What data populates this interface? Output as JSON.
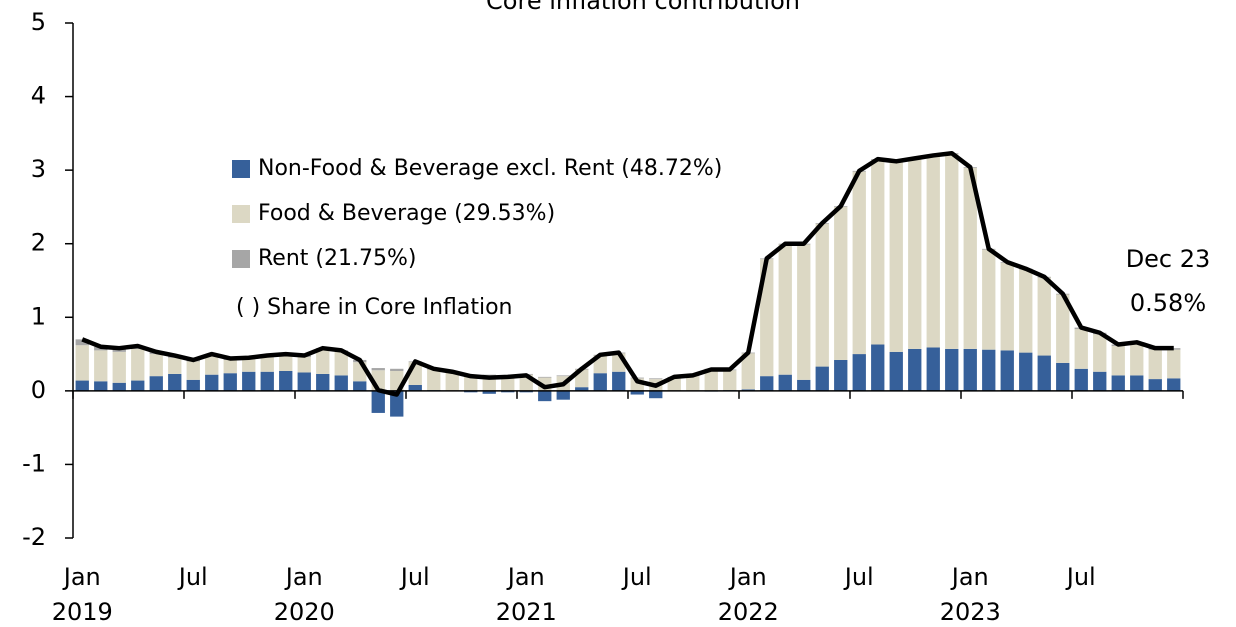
{
  "chart_data": {
    "type": "bar",
    "title": "Core inflation contribution",
    "categories": [
      "Jan",
      null,
      null,
      null,
      null,
      null,
      "Jul",
      null,
      null,
      null,
      null,
      null,
      "Jan",
      null,
      null,
      null,
      null,
      null,
      "Jul",
      null,
      null,
      null,
      null,
      null,
      "Jan",
      null,
      null,
      null,
      null,
      null,
      "Jul",
      null,
      null,
      null,
      null,
      null,
      "Jan",
      null,
      null,
      null,
      null,
      null,
      "Jul",
      null,
      null,
      null,
      null,
      null,
      "Jan",
      null,
      null,
      null,
      null,
      null,
      "Jul",
      null,
      null,
      null,
      null,
      null
    ],
    "year_labels": [
      "2019",
      "2020",
      "2021",
      "2022",
      "2023"
    ],
    "series": [
      {
        "name": "Non-Food & Beverage excl. Rent (48.72%)",
        "color": "#36609a",
        "values": [
          0.14,
          0.13,
          0.11,
          0.14,
          0.2,
          0.23,
          0.15,
          0.22,
          0.24,
          0.26,
          0.26,
          0.27,
          0.25,
          0.23,
          0.21,
          0.13,
          -0.3,
          -0.35,
          0.08,
          0.01,
          0.0,
          -0.02,
          -0.04,
          -0.02,
          -0.02,
          -0.14,
          -0.12,
          0.05,
          0.24,
          0.26,
          -0.05,
          -0.1,
          0.0,
          0.0,
          -0.01,
          0.01,
          0.02,
          0.2,
          0.22,
          0.15,
          0.33,
          0.42,
          0.5,
          0.63,
          0.53,
          0.57,
          0.59,
          0.57,
          0.57,
          0.56,
          0.55,
          0.52,
          0.48,
          0.38,
          0.3,
          0.26,
          0.21,
          0.21,
          0.16,
          0.17
        ]
      },
      {
        "name": "Food & Beverage (29.53%)",
        "color": "#dcd8c4",
        "values": [
          0.48,
          0.42,
          0.42,
          0.43,
          0.3,
          0.22,
          0.25,
          0.26,
          0.18,
          0.17,
          0.2,
          0.21,
          0.21,
          0.33,
          0.32,
          0.26,
          0.28,
          0.27,
          0.31,
          0.28,
          0.25,
          0.21,
          0.21,
          0.2,
          0.22,
          0.18,
          0.2,
          0.24,
          0.24,
          0.25,
          0.17,
          0.16,
          0.18,
          0.2,
          0.29,
          0.27,
          0.49,
          1.59,
          1.77,
          1.84,
          1.94,
          2.08,
          2.48,
          2.51,
          2.58,
          2.58,
          2.6,
          2.65,
          2.46,
          1.36,
          1.19,
          1.13,
          1.06,
          0.93,
          0.54,
          0.51,
          0.4,
          0.43,
          0.4,
          0.39
        ]
      },
      {
        "name": "Rent (21.75%)",
        "color": "#a6a6a6",
        "values": [
          0.08,
          0.05,
          0.05,
          0.04,
          0.03,
          0.03,
          0.02,
          0.02,
          0.02,
          0.02,
          0.02,
          0.02,
          0.02,
          0.02,
          0.02,
          0.03,
          0.03,
          0.03,
          0.01,
          0.01,
          0.01,
          0.01,
          0.01,
          0.01,
          0.01,
          0.01,
          0.01,
          0.01,
          0.01,
          0.01,
          0.01,
          0.01,
          0.01,
          0.01,
          0.01,
          0.01,
          0.01,
          0.01,
          0.01,
          0.01,
          0.01,
          0.01,
          0.01,
          0.01,
          0.01,
          0.01,
          0.01,
          0.01,
          0.01,
          0.01,
          0.01,
          0.01,
          0.01,
          0.01,
          0.02,
          0.02,
          0.02,
          0.02,
          0.02,
          0.02
        ]
      }
    ],
    "line": {
      "color": "#000000",
      "values": [
        0.7,
        0.6,
        0.58,
        0.61,
        0.53,
        0.48,
        0.42,
        0.5,
        0.44,
        0.45,
        0.48,
        0.5,
        0.48,
        0.58,
        0.55,
        0.42,
        0.01,
        -0.05,
        0.4,
        0.3,
        0.26,
        0.2,
        0.18,
        0.19,
        0.21,
        0.05,
        0.09,
        0.3,
        0.49,
        0.52,
        0.13,
        0.07,
        0.19,
        0.21,
        0.29,
        0.29,
        0.52,
        1.8,
        2.0,
        2.0,
        2.28,
        2.51,
        2.99,
        3.15,
        3.12,
        3.16,
        3.2,
        3.23,
        3.04,
        1.93,
        1.75,
        1.66,
        1.55,
        1.32,
        0.86,
        0.79,
        0.63,
        0.66,
        0.58,
        0.58
      ]
    },
    "legend_note": "( ) Share in Core Inflation",
    "annotations": [
      "Dec 23",
      "0.58%"
    ],
    "ylim": [
      -2,
      5
    ],
    "yticks": [
      -2,
      -1,
      0,
      1,
      2,
      3,
      4,
      5
    ]
  }
}
